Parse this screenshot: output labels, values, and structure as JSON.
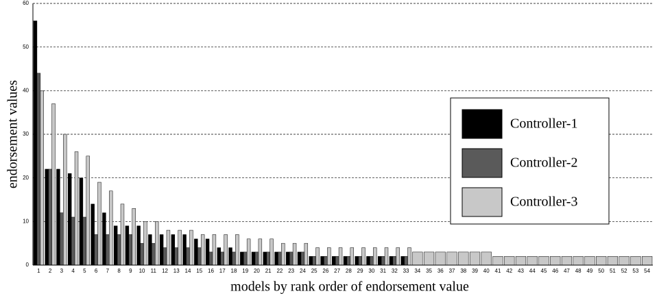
{
  "chart_data": {
    "type": "bar",
    "x_label": "models by rank order of endorsement value",
    "y_label": "endorsement values",
    "categories": [
      "1",
      "2",
      "3",
      "4",
      "5",
      "6",
      "7",
      "8",
      "9",
      "10",
      "11",
      "12",
      "13",
      "14",
      "15",
      "16",
      "17",
      "18",
      "19",
      "20",
      "21",
      "22",
      "23",
      "24",
      "25",
      "26",
      "27",
      "28",
      "29",
      "30",
      "31",
      "32",
      "33",
      "34",
      "35",
      "36",
      "37",
      "38",
      "39",
      "40",
      "41",
      "42",
      "43",
      "44",
      "45",
      "46",
      "47",
      "48",
      "49",
      "50",
      "51",
      "52",
      "53",
      "54"
    ],
    "series": [
      {
        "name": "Controller-1",
        "color": "#000000",
        "values": [
          56,
          22,
          22,
          21,
          20,
          14,
          12,
          9,
          9,
          9,
          7,
          7,
          7,
          7,
          6,
          6,
          4,
          4,
          3,
          3,
          3,
          3,
          3,
          3,
          2,
          2,
          2,
          2,
          2,
          2,
          2,
          2,
          2,
          null,
          null,
          null,
          null,
          null,
          null,
          null,
          null,
          null,
          null,
          null,
          null,
          null,
          null,
          null,
          null,
          null,
          null,
          null,
          null,
          null
        ]
      },
      {
        "name": "Controller-2",
        "color": "#5a5a5a",
        "values": [
          44,
          22,
          12,
          11,
          11,
          7,
          7,
          7,
          7,
          5,
          5,
          4,
          4,
          4,
          4,
          3,
          3,
          3,
          3,
          3,
          3,
          3,
          3,
          3,
          2,
          2,
          2,
          2,
          2,
          2,
          2,
          2,
          2,
          null,
          null,
          null,
          null,
          null,
          null,
          null,
          null,
          null,
          null,
          null,
          null,
          null,
          null,
          null,
          null,
          null,
          null,
          null,
          null,
          null
        ]
      },
      {
        "name": "Controller-3",
        "color": "#c8c8c8",
        "values": [
          40,
          37,
          30,
          26,
          25,
          19,
          17,
          14,
          13,
          10,
          10,
          8,
          8,
          8,
          7,
          7,
          7,
          7,
          6,
          6,
          6,
          5,
          5,
          5,
          4,
          4,
          4,
          4,
          4,
          4,
          4,
          4,
          4,
          3,
          3,
          3,
          3,
          3,
          3,
          3,
          2,
          2,
          2,
          2,
          2,
          2,
          2,
          2,
          2,
          2,
          2,
          2,
          2,
          2
        ]
      }
    ],
    "ylim": [
      0,
      60
    ],
    "yticks": [
      0,
      10,
      20,
      30,
      40,
      50,
      60
    ],
    "grid": true,
    "legend": "right"
  }
}
